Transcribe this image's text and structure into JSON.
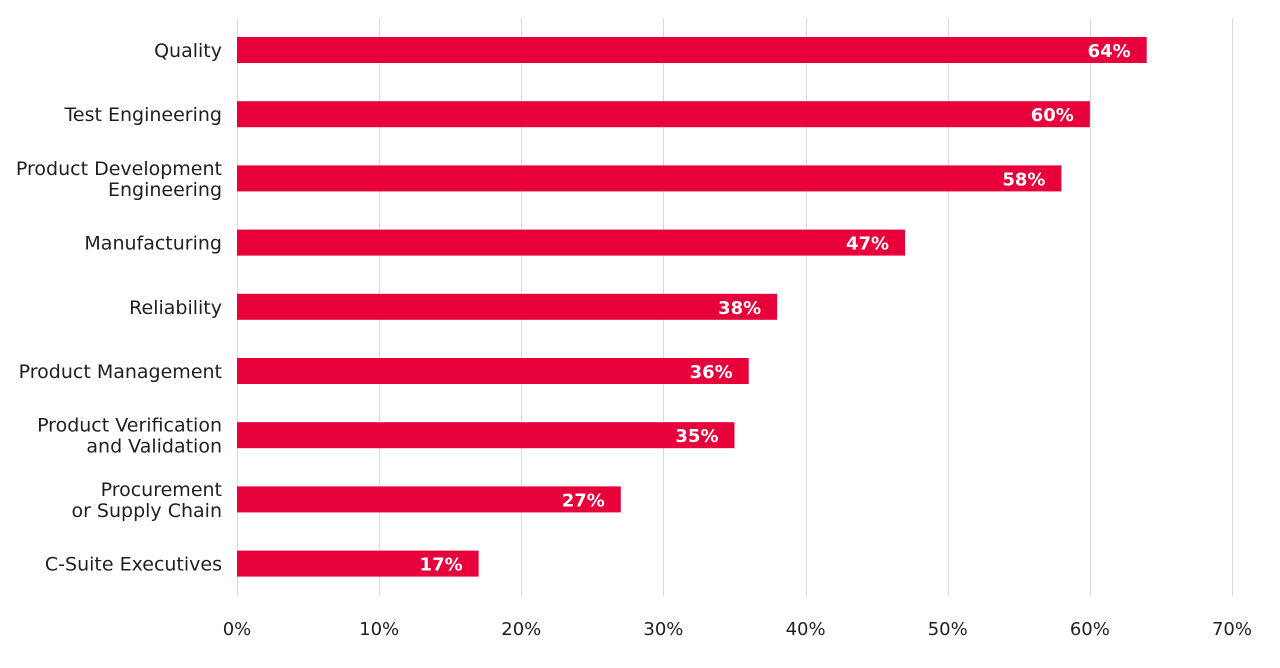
{
  "chart_data": {
    "type": "bar",
    "orientation": "horizontal",
    "categories": [
      [
        "Quality"
      ],
      [
        "Test Engineering"
      ],
      [
        "Product Development",
        "Engineering"
      ],
      [
        "Manufacturing"
      ],
      [
        "Reliability"
      ],
      [
        "Product Management"
      ],
      [
        "Product Verification",
        "and Validation"
      ],
      [
        "Procurement",
        "or Supply Chain"
      ],
      [
        "C-Suite Executives"
      ]
    ],
    "values": [
      64,
      60,
      58,
      47,
      38,
      36,
      35,
      27,
      17
    ],
    "value_labels": [
      "64%",
      "60%",
      "58%",
      "47%",
      "38%",
      "36%",
      "35%",
      "27%",
      "17%"
    ],
    "xlim": [
      0,
      70
    ],
    "x_ticks": [
      0,
      10,
      20,
      30,
      40,
      50,
      60,
      70
    ],
    "x_tick_labels": [
      "0%",
      "10%",
      "20%",
      "30%",
      "40%",
      "50%",
      "60%",
      "70%"
    ],
    "bar_color": "#e8003a",
    "grid": true,
    "legend": false
  }
}
